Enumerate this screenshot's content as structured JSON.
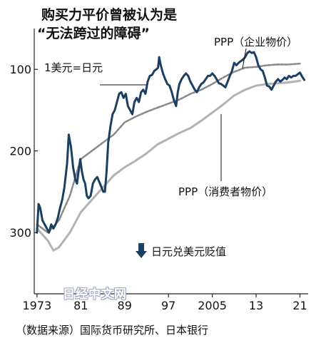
{
  "title_line1": "购买力平价曾被认为是",
  "title_line2": "“无法跨过的障碍”",
  "source": "（数据来源）国际货币研究所、日本银行",
  "watermark": "日经中文网",
  "annotations": {
    "exchange_rate": "1美元=日元",
    "ppp_corporate": "PPP（企业物价）",
    "ppp_consumer": "PPP（消费者物价）",
    "yen_weakening": "日元兑美元贬值"
  },
  "colors": {
    "exchange_rate": "#1b3f63",
    "ppp_corporate": "#8a8a8a",
    "ppp_consumer": "#b2b2b2",
    "axis": "#222222"
  },
  "chart_data": {
    "type": "line",
    "title": "购买力平价曾被认为是 “无法跨过的障碍”",
    "y_inverted": true,
    "ylim": [
      50,
      375
    ],
    "xlim": [
      1972.5,
      2022.5
    ],
    "y_ticks": [
      100,
      200,
      300
    ],
    "x_ticks": [
      {
        "value": 1973,
        "label": "1973"
      },
      {
        "value": 1981,
        "label": "81"
      },
      {
        "value": 1989,
        "label": "89"
      },
      {
        "value": 1997,
        "label": "97"
      },
      {
        "value": 2005,
        "label": "2005"
      },
      {
        "value": 2013,
        "label": "13"
      },
      {
        "value": 2021,
        "label": "21"
      }
    ],
    "grid": false,
    "series": [
      {
        "name": "1美元=日元",
        "style": "solid",
        "x": [
          1973.0,
          1973.3,
          1973.6,
          1974.0,
          1974.4,
          1974.8,
          1975.2,
          1975.6,
          1976.0,
          1976.4,
          1976.8,
          1977.2,
          1977.6,
          1978.0,
          1978.5,
          1978.8,
          1979.2,
          1979.6,
          1980.0,
          1980.3,
          1980.6,
          1980.9,
          1981.2,
          1981.5,
          1981.8,
          1982.1,
          1982.4,
          1982.8,
          1983.2,
          1983.6,
          1984.0,
          1984.5,
          1984.8,
          1985.1,
          1985.4,
          1985.7,
          1986.0,
          1986.4,
          1986.8,
          1987.2,
          1987.6,
          1988.0,
          1988.4,
          1988.8,
          1989.2,
          1989.6,
          1990.0,
          1990.4,
          1990.8,
          1991.2,
          1991.6,
          1992.0,
          1992.4,
          1992.8,
          1993.2,
          1993.6,
          1994.0,
          1994.4,
          1994.8,
          1995.1,
          1995.3,
          1995.6,
          1996.0,
          1996.4,
          1996.8,
          1997.2,
          1997.6,
          1998.0,
          1998.4,
          1998.7,
          1999.0,
          1999.4,
          1999.8,
          2000.2,
          2000.6,
          2001.0,
          2001.4,
          2001.8,
          2002.2,
          2002.6,
          2003.0,
          2003.4,
          2003.8,
          2004.2,
          2004.6,
          2005.0,
          2005.4,
          2005.8,
          2006.2,
          2006.6,
          2007.0,
          2007.4,
          2007.8,
          2008.2,
          2008.6,
          2009.0,
          2009.4,
          2009.8,
          2010.2,
          2010.6,
          2011.0,
          2011.4,
          2011.8,
          2012.2,
          2012.6,
          2013.0,
          2013.4,
          2013.8,
          2014.2,
          2014.6,
          2015.0,
          2015.4,
          2015.8,
          2016.2,
          2016.6,
          2017.0,
          2017.4,
          2017.8,
          2018.2,
          2018.6,
          2019.0,
          2019.4,
          2019.8,
          2020.2,
          2020.6,
          2021.0,
          2021.4,
          2021.8
        ],
        "y": [
          300,
          265,
          270,
          285,
          290,
          295,
          300,
          290,
          295,
          290,
          282,
          270,
          260,
          245,
          215,
          180,
          195,
          220,
          235,
          240,
          225,
          210,
          225,
          235,
          240,
          255,
          258,
          255,
          240,
          235,
          232,
          240,
          245,
          250,
          250,
          225,
          190,
          170,
          155,
          150,
          140,
          130,
          128,
          135,
          130,
          145,
          150,
          155,
          140,
          135,
          140,
          128,
          125,
          130,
          115,
          108,
          107,
          102,
          100,
          98,
          85,
          95,
          105,
          112,
          118,
          120,
          128,
          138,
          145,
          128,
          118,
          112,
          108,
          105,
          108,
          115,
          120,
          125,
          128,
          122,
          118,
          116,
          112,
          108,
          108,
          105,
          108,
          112,
          117,
          118,
          120,
          122,
          115,
          108,
          102,
          92,
          95,
          92,
          90,
          88,
          85,
          80,
          78,
          80,
          79,
          85,
          95,
          100,
          102,
          110,
          120,
          121,
          125,
          120,
          115,
          112,
          115,
          113,
          110,
          112,
          108,
          110,
          108,
          108,
          106,
          104,
          109,
          113
        ]
      },
      {
        "name": "PPP（企业物价）",
        "style": "dashed",
        "x": [
          1973,
          1975,
          1977,
          1979,
          1981,
          1983,
          1985,
          1987,
          1989,
          1991,
          1993,
          1995,
          1997,
          1999,
          2001,
          2003,
          2005,
          2007,
          2009,
          2011,
          2013,
          2015,
          2017,
          2019,
          2021
        ],
        "y": [
          290,
          300,
          285,
          255,
          210,
          200,
          190,
          180,
          165,
          158,
          152,
          147,
          142,
          137,
          130,
          125,
          118,
          110,
          103,
          98,
          97,
          95,
          94,
          94,
          93
        ]
      },
      {
        "name": "PPP（消费者物价）",
        "style": "solid",
        "x": [
          1973,
          1975,
          1976,
          1977,
          1979,
          1981,
          1983,
          1985,
          1987,
          1989,
          1991,
          1993,
          1995,
          1997,
          1999,
          2001,
          2003,
          2005,
          2007,
          2009,
          2011,
          2013,
          2015,
          2017,
          2019,
          2021
        ],
        "y": [
          295,
          310,
          322,
          318,
          300,
          275,
          260,
          245,
          230,
          220,
          212,
          203,
          192,
          185,
          178,
          172,
          163,
          153,
          143,
          132,
          125,
          120,
          118,
          117,
          116,
          114
        ]
      }
    ]
  }
}
